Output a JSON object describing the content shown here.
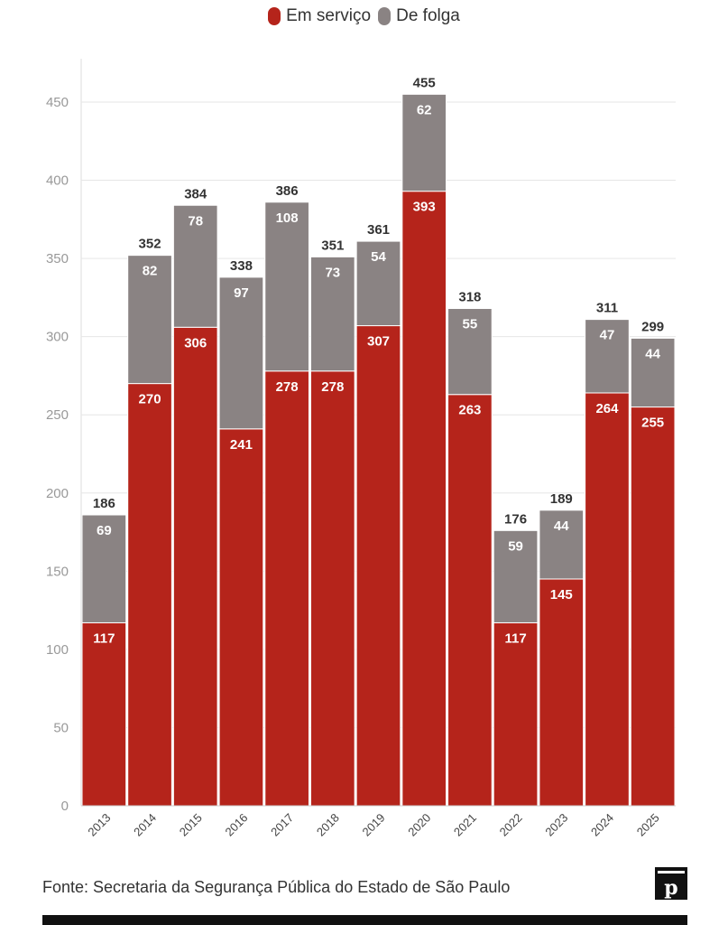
{
  "legend": {
    "items": [
      {
        "label": "Em serviço",
        "color": "#b5241b"
      },
      {
        "label": "De folga",
        "color": "#8a8383"
      }
    ]
  },
  "source": "Fonte: Secretaria da Segurança Pública do Estado de São Paulo",
  "logo": {
    "letter": "p"
  },
  "chart_data": {
    "type": "bar",
    "stacked": true,
    "categories": [
      "2013",
      "2014",
      "2015",
      "2016",
      "2017",
      "2018",
      "2019",
      "2020",
      "2021",
      "2022",
      "2023",
      "2024",
      "2025"
    ],
    "series": [
      {
        "name": "Em serviço",
        "color": "#b5241b",
        "values": [
          117,
          270,
          306,
          241,
          278,
          278,
          307,
          393,
          263,
          117,
          145,
          264,
          255
        ]
      },
      {
        "name": "De folga",
        "color": "#8a8383",
        "values": [
          69,
          82,
          78,
          97,
          108,
          73,
          54,
          62,
          55,
          59,
          44,
          47,
          44
        ]
      }
    ],
    "totals": [
      186,
      352,
      384,
      338,
      386,
      351,
      361,
      455,
      318,
      176,
      189,
      311,
      299
    ],
    "ylim": [
      0,
      450
    ],
    "yticks": [
      0,
      50,
      100,
      150,
      200,
      250,
      300,
      350,
      400,
      450
    ],
    "grid": true,
    "legend_position": "top-center"
  }
}
